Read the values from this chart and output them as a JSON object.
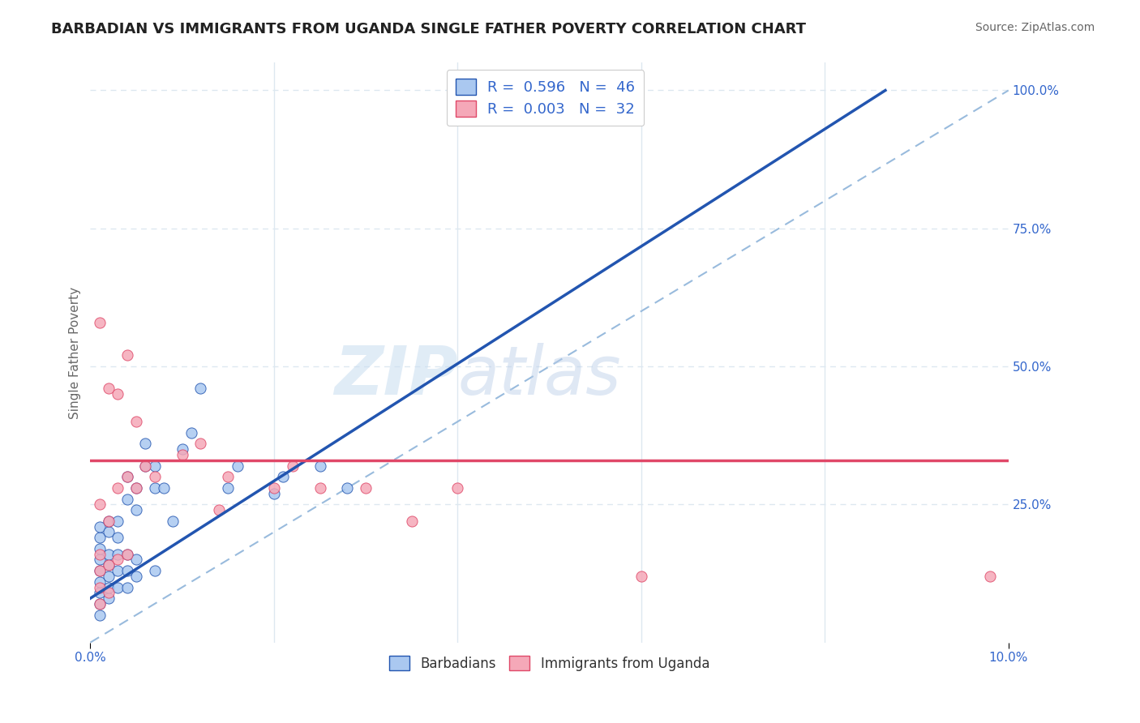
{
  "title": "BARBADIAN VS IMMIGRANTS FROM UGANDA SINGLE FATHER POVERTY CORRELATION CHART",
  "source": "Source: ZipAtlas.com",
  "ylabel": "Single Father Poverty",
  "ylabel_right_ticks": [
    "100.0%",
    "75.0%",
    "50.0%",
    "25.0%"
  ],
  "ylabel_right_vals": [
    1.0,
    0.75,
    0.5,
    0.25
  ],
  "xlim": [
    0.0,
    0.1
  ],
  "ylim": [
    0.0,
    1.05
  ],
  "blue_R": "0.596",
  "blue_N": "46",
  "pink_R": "0.003",
  "pink_N": "32",
  "blue_color": "#aac8f0",
  "pink_color": "#f5a8b8",
  "blue_line_color": "#2255b0",
  "pink_line_color": "#e04868",
  "dashed_line_color": "#99bbdd",
  "watermark_zip": "ZIP",
  "watermark_atlas": "atlas",
  "background_color": "#ffffff",
  "grid_color": "#dde8f0",
  "grid_dash": [
    4,
    4
  ],
  "blue_scatter_x": [
    0.001,
    0.001,
    0.001,
    0.001,
    0.001,
    0.001,
    0.001,
    0.001,
    0.001,
    0.002,
    0.002,
    0.002,
    0.002,
    0.002,
    0.002,
    0.002,
    0.003,
    0.003,
    0.003,
    0.003,
    0.003,
    0.004,
    0.004,
    0.004,
    0.004,
    0.004,
    0.005,
    0.005,
    0.005,
    0.005,
    0.006,
    0.006,
    0.007,
    0.007,
    0.007,
    0.008,
    0.009,
    0.01,
    0.011,
    0.012,
    0.015,
    0.016,
    0.02,
    0.021,
    0.025,
    0.028
  ],
  "blue_scatter_y": [
    0.05,
    0.07,
    0.09,
    0.11,
    0.13,
    0.15,
    0.17,
    0.19,
    0.21,
    0.08,
    0.1,
    0.12,
    0.14,
    0.16,
    0.2,
    0.22,
    0.1,
    0.13,
    0.16,
    0.19,
    0.22,
    0.1,
    0.13,
    0.16,
    0.26,
    0.3,
    0.12,
    0.15,
    0.24,
    0.28,
    0.32,
    0.36,
    0.13,
    0.28,
    0.32,
    0.28,
    0.22,
    0.35,
    0.38,
    0.46,
    0.28,
    0.32,
    0.27,
    0.3,
    0.32,
    0.28
  ],
  "pink_scatter_x": [
    0.001,
    0.001,
    0.001,
    0.001,
    0.001,
    0.001,
    0.002,
    0.002,
    0.002,
    0.002,
    0.003,
    0.003,
    0.003,
    0.004,
    0.004,
    0.004,
    0.005,
    0.005,
    0.006,
    0.007,
    0.01,
    0.012,
    0.014,
    0.015,
    0.02,
    0.022,
    0.025,
    0.03,
    0.035,
    0.04,
    0.06,
    0.098
  ],
  "pink_scatter_y": [
    0.07,
    0.1,
    0.13,
    0.16,
    0.25,
    0.58,
    0.09,
    0.14,
    0.22,
    0.46,
    0.15,
    0.28,
    0.45,
    0.16,
    0.3,
    0.52,
    0.28,
    0.4,
    0.32,
    0.3,
    0.34,
    0.36,
    0.24,
    0.3,
    0.28,
    0.32,
    0.28,
    0.28,
    0.22,
    0.28,
    0.12,
    0.12
  ],
  "blue_line_x0": 0.0,
  "blue_line_y0": 0.08,
  "blue_line_x1": 0.032,
  "blue_line_y1": 0.42,
  "pink_line_y": 0.33,
  "tick_color": "#3366cc",
  "title_color": "#222222",
  "source_color": "#666666"
}
